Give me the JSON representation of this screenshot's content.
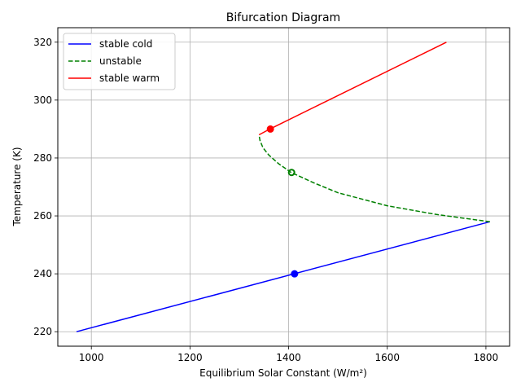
{
  "chart_data": {
    "type": "line",
    "title": "Bifurcation Diagram",
    "xlabel": "Equilibrium Solar Constant (W/m²)",
    "ylabel": "Temperature (K)",
    "xlim": [
      932,
      1848
    ],
    "ylim": [
      215,
      325
    ],
    "grid": true,
    "legend_position": "top-left",
    "xticks": [
      {
        "value": 1000,
        "label": "1000"
      },
      {
        "value": 1200,
        "label": "1200"
      },
      {
        "value": 1400,
        "label": "1400"
      },
      {
        "value": 1600,
        "label": "1600"
      },
      {
        "value": 1800,
        "label": "1800"
      }
    ],
    "yticks": [
      {
        "value": 220,
        "label": "220"
      },
      {
        "value": 240,
        "label": "240"
      },
      {
        "value": 260,
        "label": "260"
      },
      {
        "value": 280,
        "label": "280"
      },
      {
        "value": 300,
        "label": "300"
      },
      {
        "value": 320,
        "label": "320"
      }
    ],
    "series": [
      {
        "name": "stable cold",
        "color": "#0000ff",
        "style": "solid",
        "points": [
          [
            970,
            220
          ],
          [
            1808,
            258
          ]
        ]
      },
      {
        "name": "unstable",
        "color": "#008000",
        "style": "dashed",
        "points": [
          [
            1808,
            258
          ],
          [
            1700,
            260.5
          ],
          [
            1600,
            263.5
          ],
          [
            1500,
            268
          ],
          [
            1450,
            271.5
          ],
          [
            1405,
            275
          ],
          [
            1380,
            278
          ],
          [
            1360,
            281
          ],
          [
            1348,
            283.5
          ],
          [
            1342,
            286
          ],
          [
            1340,
            288
          ]
        ]
      },
      {
        "name": "stable warm",
        "color": "#ff0000",
        "style": "solid",
        "points": [
          [
            1340,
            288
          ],
          [
            1362,
            290
          ],
          [
            1720,
            320
          ]
        ]
      }
    ],
    "markers": [
      {
        "series": "stable cold",
        "x": 1412,
        "y": 240,
        "color": "#0000ff",
        "filled": true
      },
      {
        "series": "unstable",
        "x": 1406,
        "y": 275,
        "color": "#008000",
        "filled": false
      },
      {
        "series": "stable warm",
        "x": 1363,
        "y": 290,
        "color": "#ff0000",
        "filled": true
      }
    ]
  }
}
